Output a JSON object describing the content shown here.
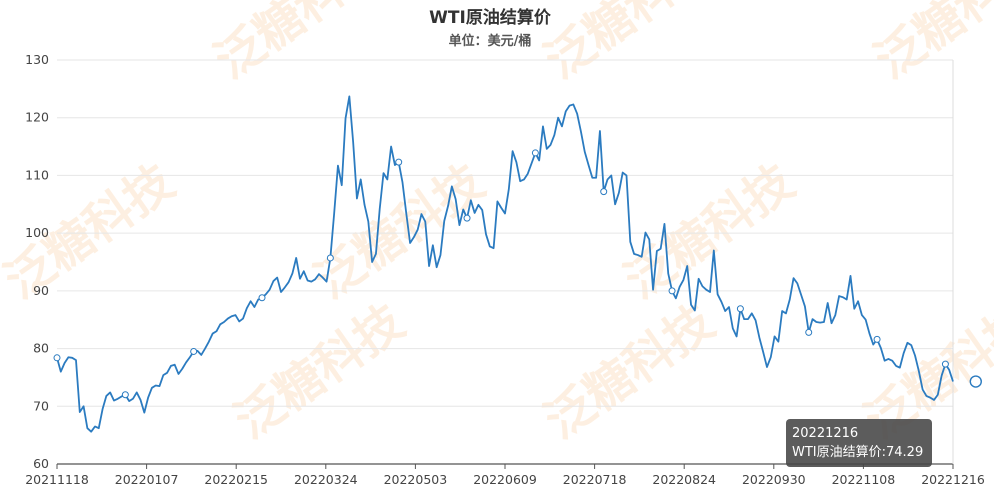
{
  "chart_data": {
    "type": "line",
    "title": "WTI原油结算价",
    "subtitle": "单位：美元/桶",
    "ylim": [
      60,
      130
    ],
    "yticks": [
      60,
      70,
      80,
      90,
      100,
      110,
      120,
      130
    ],
    "xticks": [
      "20211118",
      "20220107",
      "20220215",
      "20220324",
      "20220503",
      "20220609",
      "20220718",
      "20220824",
      "20220930",
      "20221108",
      "20221216"
    ],
    "grid": true,
    "watermark": "泛糖科技",
    "series": [
      {
        "name": "WTI原油结算价",
        "color": "#2b7bc0",
        "values": [
          78.4,
          76.0,
          77.5,
          78.5,
          78.4,
          78.0,
          69.0,
          70.0,
          66.2,
          65.6,
          66.5,
          66.2,
          69.5,
          71.8,
          72.4,
          71.0,
          71.3,
          71.7,
          72.0,
          70.9,
          71.3,
          72.4,
          71.1,
          68.9,
          71.5,
          73.2,
          73.6,
          73.5,
          75.4,
          75.8,
          77.0,
          77.2,
          75.6,
          76.5,
          77.6,
          78.5,
          79.5,
          79.6,
          78.9,
          80.0,
          81.2,
          82.6,
          83.0,
          84.2,
          84.6,
          85.2,
          85.6,
          85.8,
          84.7,
          85.2,
          87.0,
          88.2,
          87.2,
          88.5,
          88.8,
          89.4,
          90.2,
          91.7,
          92.3,
          89.8,
          90.6,
          91.5,
          93.0,
          95.7,
          92.1,
          93.4,
          91.8,
          91.6,
          92.0,
          92.9,
          92.3,
          91.6,
          95.7,
          103.4,
          111.7,
          108.3,
          119.9,
          123.7,
          115.8,
          106.0,
          109.3,
          104.9,
          102.0,
          95.0,
          96.4,
          104.2,
          110.4,
          109.3,
          115.0,
          111.8,
          112.3,
          108.8,
          103.4,
          98.3,
          99.3,
          100.6,
          103.3,
          102.0,
          94.3,
          97.9,
          94.1,
          96.2,
          102.1,
          104.7,
          108.1,
          105.9,
          101.4,
          104.1,
          102.6,
          105.7,
          103.5,
          104.9,
          104.0,
          99.8,
          97.7,
          97.4,
          105.5,
          104.4,
          103.4,
          107.6,
          114.2,
          112.3,
          109.0,
          109.3,
          110.3,
          112.1,
          113.9,
          112.6,
          118.5,
          114.6,
          115.3,
          117.0,
          120.0,
          118.5,
          121.1,
          122.1,
          122.3,
          120.7,
          117.6,
          114.1,
          111.8,
          109.6,
          109.6,
          117.7,
          107.2,
          109.3,
          110.0,
          105.0,
          107.0,
          110.5,
          110.0,
          98.5,
          96.4,
          96.2,
          95.9,
          100.1,
          98.9,
          90.2,
          96.9,
          97.3,
          101.6,
          93.0,
          90.0,
          88.7,
          90.7,
          91.9,
          94.3,
          87.6,
          86.6,
          92.1,
          90.8,
          90.2,
          89.8,
          97.0,
          89.4,
          88.1,
          86.5,
          87.2,
          83.5,
          82.1,
          86.9,
          85.1,
          85.1,
          86.1,
          84.9,
          81.9,
          79.4,
          76.8,
          78.5,
          82.1,
          81.2,
          86.5,
          86.1,
          88.5,
          92.2,
          91.3,
          89.3,
          87.3,
          82.8,
          85.1,
          84.6,
          84.5,
          84.6,
          87.9,
          84.4,
          85.8,
          89.1,
          88.9,
          88.5,
          92.6,
          86.9,
          88.2,
          85.8,
          85.0,
          82.6,
          80.7,
          81.6,
          80.1,
          77.9,
          78.2,
          77.9,
          77.0,
          76.7,
          79.2,
          81.0,
          80.6,
          78.8,
          76.1,
          72.9,
          71.8,
          71.5,
          71.1,
          72.0,
          75.3,
          77.3,
          76.3,
          74.29
        ]
      }
    ],
    "highlight": {
      "index": 242,
      "x": "20221216",
      "label": "WTI原油结算价",
      "value": 74.29
    }
  },
  "tooltip": {
    "date": "20221216",
    "text": "WTI原油结算价:74.29"
  }
}
